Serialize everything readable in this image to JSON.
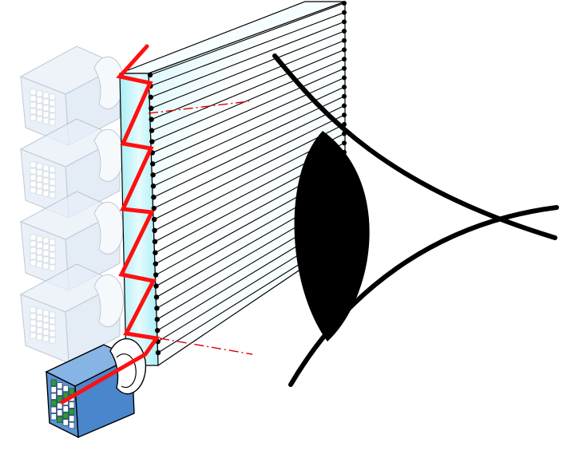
{
  "figure": {
    "description_free": true,
    "colors": {
      "background": "#ffffff",
      "ray": "#ff1010",
      "guide_line": "#e00000",
      "slab_edge_fill": "#bff3f8",
      "slab_face": "#f3fdff",
      "outline": "#000000",
      "ghost_projector_body": "#dce6f2",
      "ghost_projector_stroke": "#aab6c6",
      "active_projector_top": "#86b4e4",
      "active_projector_side": "#4a86cc",
      "lens": "#ffffff",
      "pixel_grid": "#ffffff",
      "pixel_green": "#2f9a2f",
      "eye": "#000000"
    },
    "icons": [
      "projector-icon",
      "lens-icon",
      "waveguide-slab-icon",
      "eye-icon",
      "extraction-dot-icon"
    ],
    "ghost_projector_count": 4,
    "active_projector_count": 1,
    "extraction_layer_count": 26,
    "ray_bounce_count": 8
  }
}
